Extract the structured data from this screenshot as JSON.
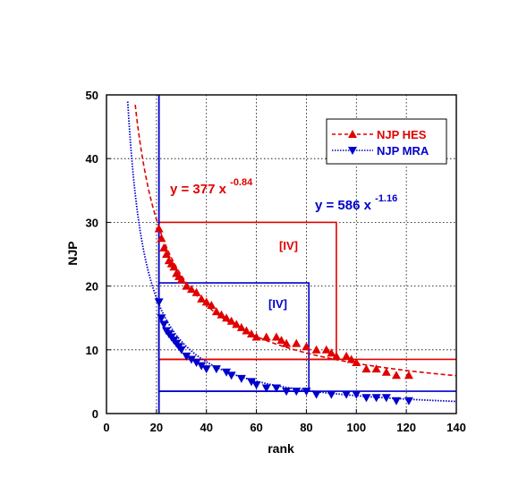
{
  "chart_data": {
    "type": "scatter",
    "title": "",
    "xlabel": "rank",
    "ylabel": "NJP",
    "xlim": [
      0,
      140
    ],
    "ylim": [
      0,
      50
    ],
    "xticks": [
      0,
      20,
      40,
      60,
      80,
      100,
      120,
      140
    ],
    "yticks": [
      0,
      10,
      20,
      30,
      40,
      50
    ],
    "xtick_labels": [
      "0",
      "20",
      "40",
      "60",
      "80",
      "100",
      "120",
      "140"
    ],
    "ytick_labels": [
      "0",
      "10",
      "20",
      "30",
      "40",
      "50"
    ],
    "grid": true,
    "legend": "top-right",
    "series": [
      {
        "name": "NJP HES",
        "color": "#e00000",
        "marker": "triangle-up",
        "points": [
          [
            21,
            29
          ],
          [
            22,
            27.5
          ],
          [
            23,
            26
          ],
          [
            24,
            25
          ],
          [
            25,
            24
          ],
          [
            26,
            23.5
          ],
          [
            27,
            23
          ],
          [
            28,
            22
          ],
          [
            29,
            21.5
          ],
          [
            30,
            21
          ],
          [
            32,
            20
          ],
          [
            34,
            19.5
          ],
          [
            36,
            19
          ],
          [
            38,
            18
          ],
          [
            40,
            17.5
          ],
          [
            42,
            17
          ],
          [
            44,
            16
          ],
          [
            46,
            15.5
          ],
          [
            48,
            15
          ],
          [
            50,
            14.5
          ],
          [
            52,
            14
          ],
          [
            54,
            13.5
          ],
          [
            56,
            13
          ],
          [
            58,
            12.5
          ],
          [
            60,
            12
          ],
          [
            64,
            12
          ],
          [
            68,
            12
          ],
          [
            70,
            11.5
          ],
          [
            72,
            11
          ],
          [
            76,
            11
          ],
          [
            80,
            10.5
          ],
          [
            84,
            10
          ],
          [
            88,
            10
          ],
          [
            90,
            9.5
          ],
          [
            92,
            9
          ],
          [
            96,
            9
          ],
          [
            98,
            8.5
          ],
          [
            100,
            8
          ],
          [
            104,
            7
          ],
          [
            108,
            7
          ],
          [
            112,
            6.5
          ],
          [
            116,
            6
          ],
          [
            121,
            6
          ]
        ],
        "fit": {
          "coef": 377,
          "exponent": -0.84,
          "x_range": [
            10,
            140
          ]
        }
      },
      {
        "name": "NJP MRA",
        "color": "#0000cc",
        "marker": "triangle-down",
        "points": [
          [
            21,
            17.5
          ],
          [
            22,
            15
          ],
          [
            23,
            14
          ],
          [
            24,
            13
          ],
          [
            25,
            12.5
          ],
          [
            26,
            12
          ],
          [
            27,
            11.5
          ],
          [
            28,
            11
          ],
          [
            29,
            10.5
          ],
          [
            30,
            10
          ],
          [
            32,
            9
          ],
          [
            34,
            8.5
          ],
          [
            36,
            8
          ],
          [
            38,
            7.5
          ],
          [
            40,
            7
          ],
          [
            44,
            7
          ],
          [
            48,
            6.5
          ],
          [
            50,
            6
          ],
          [
            54,
            5.5
          ],
          [
            58,
            5
          ],
          [
            60,
            4.5
          ],
          [
            64,
            4
          ],
          [
            68,
            4
          ],
          [
            72,
            3.5
          ],
          [
            76,
            3.5
          ],
          [
            80,
            3.5
          ],
          [
            84,
            3
          ],
          [
            90,
            3
          ],
          [
            96,
            3
          ],
          [
            100,
            3
          ],
          [
            104,
            2.5
          ],
          [
            108,
            2.5
          ],
          [
            112,
            2.5
          ],
          [
            116,
            2
          ],
          [
            121,
            2
          ]
        ],
        "fit": {
          "coef": 586,
          "exponent": -1.16,
          "x_range": [
            7,
            140
          ]
        }
      }
    ],
    "annotations": [
      {
        "id": "eq_red",
        "base": "y = 377  x",
        "sup": "-0.84",
        "color": "#e00000"
      },
      {
        "id": "eq_blue",
        "base": "y = 586  x",
        "sup": "-1.16",
        "color": "#0000cc"
      },
      {
        "id": "box_red",
        "label": "[IV]",
        "color": "#e00000"
      },
      {
        "id": "box_blue",
        "label": "[IV]",
        "color": "#0000cc"
      }
    ],
    "boxes": [
      {
        "color": "#e00000",
        "x": [
          21,
          92
        ],
        "y": [
          8.5,
          30
        ]
      },
      {
        "color": "#0000cc",
        "x": [
          21,
          81
        ],
        "y": [
          3.5,
          20.5
        ]
      }
    ],
    "guide_lines": [
      {
        "color": "#e00000",
        "x": [
          21,
          140
        ],
        "y": 8.5
      },
      {
        "color": "#0000cc",
        "x": [
          21,
          140
        ],
        "y": 3.5
      },
      {
        "color": "#0000cc",
        "x": 21,
        "y": [
          0,
          50
        ]
      }
    ]
  }
}
